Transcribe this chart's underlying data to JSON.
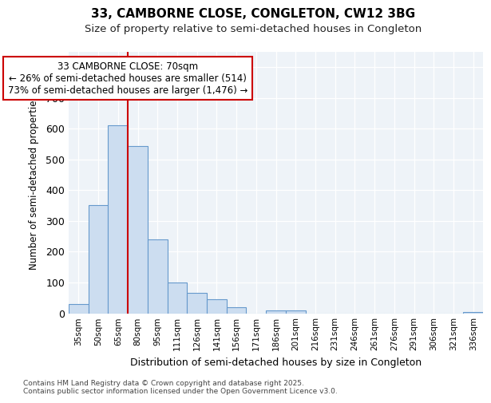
{
  "title_line1": "33, CAMBORNE CLOSE, CONGLETON, CW12 3BG",
  "title_line2": "Size of property relative to semi-detached houses in Congleton",
  "xlabel": "Distribution of semi-detached houses by size in Congleton",
  "ylabel": "Number of semi-detached properties",
  "categories": [
    "35sqm",
    "50sqm",
    "65sqm",
    "80sqm",
    "95sqm",
    "111sqm",
    "126sqm",
    "141sqm",
    "156sqm",
    "171sqm",
    "186sqm",
    "201sqm",
    "216sqm",
    "231sqm",
    "246sqm",
    "261sqm",
    "276sqm",
    "291sqm",
    "306sqm",
    "321sqm",
    "336sqm"
  ],
  "values": [
    30,
    352,
    610,
    545,
    240,
    100,
    65,
    45,
    20,
    0,
    10,
    10,
    0,
    0,
    0,
    0,
    0,
    0,
    0,
    0,
    5
  ],
  "bar_color": "#ccddf0",
  "bar_edge_color": "#6699cc",
  "vline_x": 2.5,
  "vline_color": "#cc0000",
  "annotation_text_line1": "33 CAMBORNE CLOSE: 70sqm",
  "annotation_text_line2": "← 26% of semi-detached houses are smaller (514)",
  "annotation_text_line3": "73% of semi-detached houses are larger (1,476) →",
  "annotation_box_facecolor": "#ffffff",
  "annotation_box_edgecolor": "#cc0000",
  "ylim": [
    0,
    850
  ],
  "yticks": [
    0,
    100,
    200,
    300,
    400,
    500,
    600,
    700,
    800
  ],
  "fig_facecolor": "#ffffff",
  "axes_facecolor": "#eef3f8",
  "grid_color": "#ffffff",
  "footnote": "Contains HM Land Registry data © Crown copyright and database right 2025.\nContains public sector information licensed under the Open Government Licence v3.0."
}
